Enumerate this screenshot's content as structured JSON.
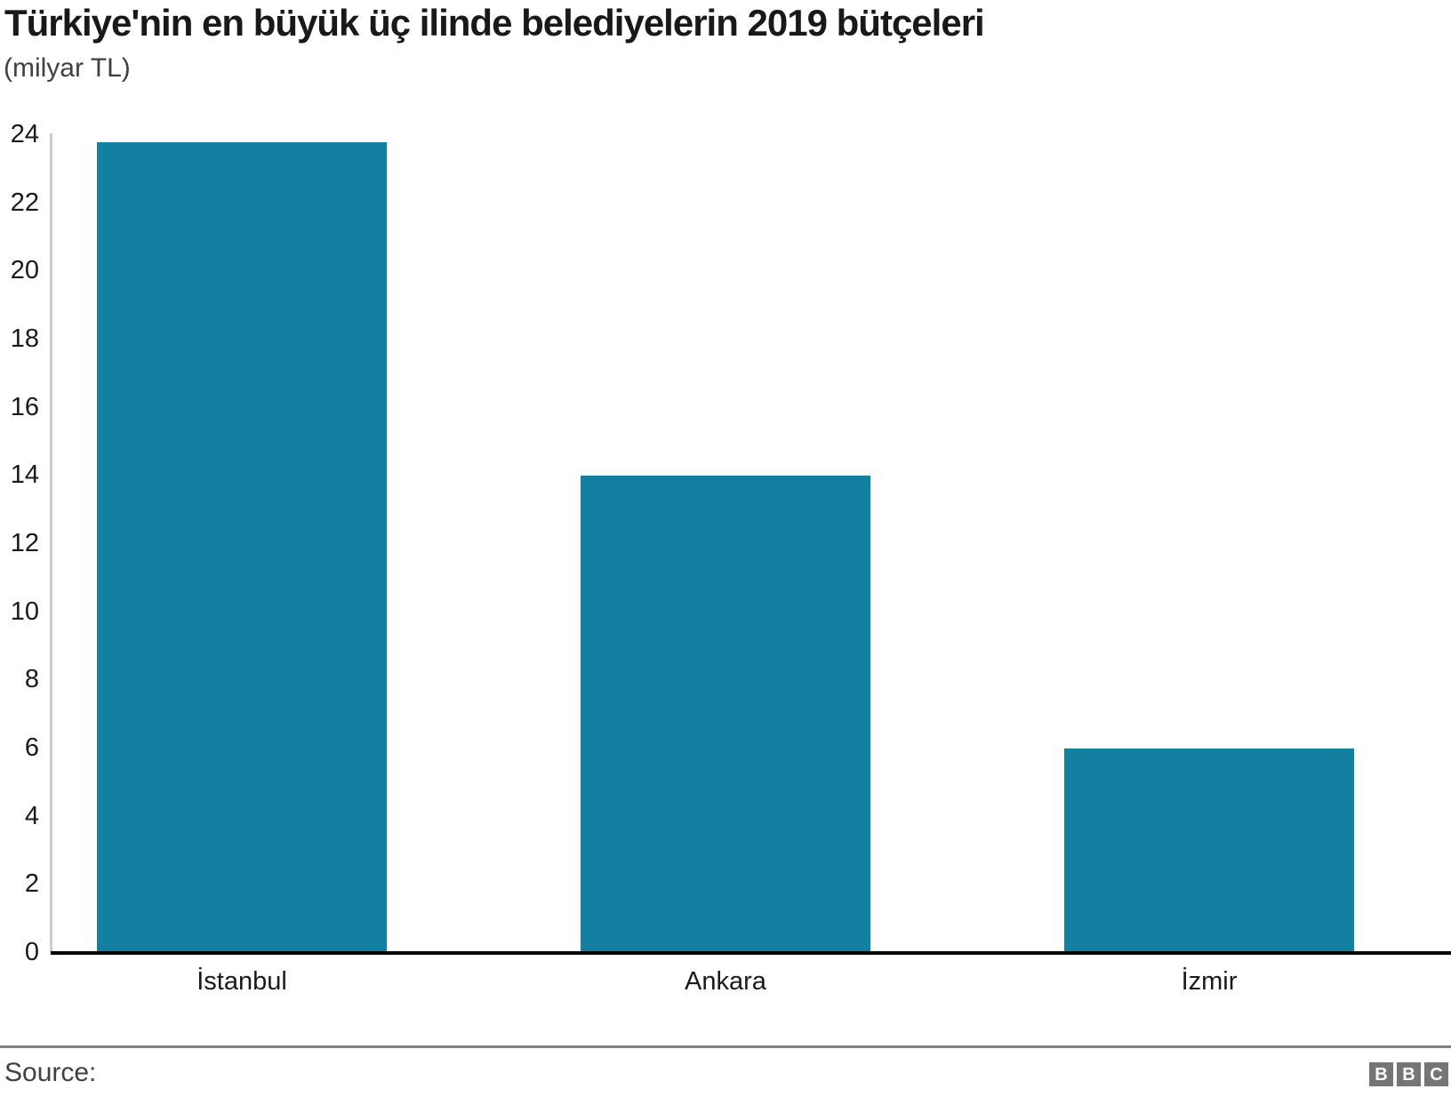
{
  "header": {
    "title": "Türkiye'nin en büyük üç ilinde belediyelerin 2019 bütçeleri",
    "subtitle": "(milyar TL)"
  },
  "footer": {
    "source_label": "Source:",
    "logo_letters": [
      "B",
      "B",
      "C"
    ]
  },
  "colors": {
    "bar": "#1380A1",
    "title_text": "#191919",
    "muted_text": "#404040",
    "tick_text": "#1a1a1a",
    "y_axis_line": "#cbcbcb",
    "x_axis_line": "#000000",
    "separator": "#808080",
    "logo_box": "#757575"
  },
  "chart_data": {
    "type": "bar",
    "title": "Türkiye'nin en büyük üç ilinde belediyelerin 2019 bütçeleri",
    "subtitle": "(milyar TL)",
    "categories": [
      "İstanbul",
      "Ankara",
      "İzmir"
    ],
    "values": [
      23.8,
      14,
      6
    ],
    "xlabel": "",
    "ylabel": "milyar TL",
    "ylim": [
      0,
      24
    ],
    "yticks": [
      0,
      2,
      4,
      6,
      8,
      10,
      12,
      14,
      16,
      18,
      20,
      22,
      24
    ],
    "grid": false,
    "legend": false,
    "bar_color": "#1380A1"
  }
}
